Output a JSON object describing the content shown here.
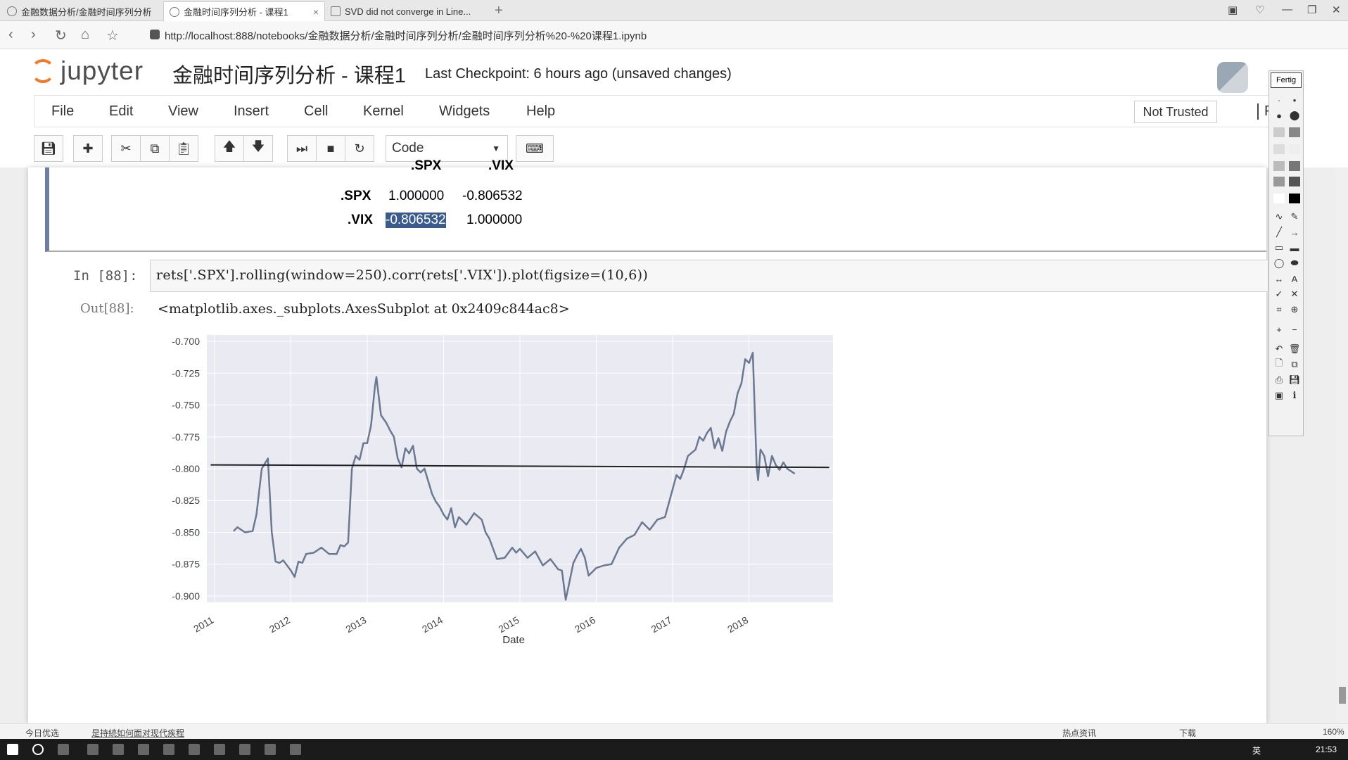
{
  "browser": {
    "tabs": [
      {
        "label": "金融数据分析/金融时间序列分析"
      },
      {
        "label": "金融时间序列分析 - 课程1"
      },
      {
        "label": "SVD did not converge in Line..."
      }
    ],
    "url": "http://localhost:888/notebooks/金融数据分析/金融时间序列分析/金融时间序列分析%20-%20课程1.ipynb",
    "zoom": "160%"
  },
  "jupyter": {
    "logo_text": "jupyter",
    "notebook_title": "金融时间序列分析 - 课程1",
    "checkpoint": "Last Checkpoint: 6 hours ago (unsaved changes)",
    "menu": [
      "File",
      "Edit",
      "View",
      "Insert",
      "Cell",
      "Kernel",
      "Widgets",
      "Help"
    ],
    "trust": "Not Trusted",
    "kernel": "Pytho",
    "cell_type": "Code"
  },
  "corr_table": {
    "columns": [
      ".SPX",
      ".VIX"
    ],
    "rows": [
      {
        "label": ".SPX",
        "values": [
          "1.000000",
          "-0.806532"
        ]
      },
      {
        "label": ".VIX",
        "values": [
          "-0.806532",
          "1.000000"
        ]
      }
    ]
  },
  "cell": {
    "in_prompt": "In  [88]:",
    "code": "rets['.SPX'].rolling(window=250).corr(rets['.VIX']).plot(figsize=(10,6))",
    "out_prompt": "Out[88]:",
    "out_text": "<matplotlib.axes._subplots.AxesSubplot at 0x2409c844ac8>"
  },
  "palette": {
    "title": "Fertig"
  },
  "status_bar": {
    "left": "今日优选",
    "center": "是持続如何面对现代疾程",
    "right_items": [
      "热点资讯",
      "下载"
    ]
  },
  "taskbar": {
    "time": "21:53",
    "lang": "英"
  },
  "chart_data": {
    "type": "line",
    "title": "",
    "xlabel": "Date",
    "ylabel": "",
    "x_ticks": [
      "2011",
      "2012",
      "2013",
      "2014",
      "2015",
      "2016",
      "2017",
      "2018"
    ],
    "y_ticks": [
      "-0.700",
      "-0.725",
      "-0.750",
      "-0.775",
      "-0.800",
      "-0.825",
      "-0.850",
      "-0.875",
      "-0.900"
    ],
    "ylim": [
      -0.905,
      -0.695
    ],
    "xlim": [
      2010.9,
      2019.1
    ],
    "grid": true,
    "line_color": "#6a7891",
    "series": [
      {
        "x": [
          2011.25,
          2011.3,
          2011.4,
          2011.5,
          2011.55,
          2011.62,
          2011.7,
          2011.75,
          2011.8,
          2011.85,
          2011.9,
          2011.95,
          2012.0,
          2012.05,
          2012.1,
          2012.15,
          2012.2,
          2012.3,
          2012.4,
          2012.5,
          2012.6,
          2012.65,
          2012.7,
          2012.75,
          2012.8,
          2012.85,
          2012.9,
          2012.95,
          2013.0,
          2013.05,
          2013.1,
          2013.12,
          2013.18,
          2013.25,
          2013.3,
          2013.35,
          2013.4,
          2013.45,
          2013.5,
          2013.55,
          2013.6,
          2013.65,
          2013.7,
          2013.75,
          2013.8,
          2013.85,
          2013.9,
          2013.95,
          2014.0,
          2014.05,
          2014.1,
          2014.15,
          2014.2,
          2014.3,
          2014.4,
          2014.5,
          2014.55,
          2014.6,
          2014.7,
          2014.8,
          2014.9,
          2014.95,
          2015.0,
          2015.1,
          2015.2,
          2015.3,
          2015.4,
          2015.5,
          2015.55,
          2015.6,
          2015.7,
          2015.75,
          2015.8,
          2015.85,
          2015.9,
          2016.0,
          2016.1,
          2016.2,
          2016.3,
          2016.4,
          2016.5,
          2016.6,
          2016.7,
          2016.8,
          2016.9,
          2017.0,
          2017.05,
          2017.1,
          2017.15,
          2017.2,
          2017.3,
          2017.35,
          2017.4,
          2017.45,
          2017.5,
          2017.55,
          2017.6,
          2017.65,
          2017.7,
          2017.75,
          2017.8,
          2017.85,
          2017.9,
          2017.95,
          2018.0,
          2018.05,
          2018.1,
          2018.12,
          2018.15,
          2018.2,
          2018.25,
          2018.3,
          2018.35,
          2018.4,
          2018.45,
          2018.5,
          2018.55,
          2018.6
        ],
        "y": [
          -0.849,
          -0.846,
          -0.85,
          -0.849,
          -0.836,
          -0.8,
          -0.792,
          -0.85,
          -0.873,
          -0.874,
          -0.872,
          -0.876,
          -0.88,
          -0.885,
          -0.873,
          -0.874,
          -0.867,
          -0.866,
          -0.862,
          -0.867,
          -0.867,
          -0.86,
          -0.861,
          -0.858,
          -0.8,
          -0.79,
          -0.793,
          -0.78,
          -0.78,
          -0.766,
          -0.736,
          -0.728,
          -0.758,
          -0.764,
          -0.77,
          -0.775,
          -0.792,
          -0.799,
          -0.784,
          -0.788,
          -0.782,
          -0.8,
          -0.803,
          -0.8,
          -0.81,
          -0.82,
          -0.826,
          -0.83,
          -0.836,
          -0.84,
          -0.831,
          -0.846,
          -0.838,
          -0.844,
          -0.835,
          -0.84,
          -0.85,
          -0.855,
          -0.871,
          -0.87,
          -0.862,
          -0.866,
          -0.863,
          -0.87,
          -0.865,
          -0.876,
          -0.871,
          -0.879,
          -0.88,
          -0.903,
          -0.874,
          -0.868,
          -0.863,
          -0.87,
          -0.884,
          -0.878,
          -0.876,
          -0.875,
          -0.862,
          -0.855,
          -0.852,
          -0.842,
          -0.848,
          -0.84,
          -0.838,
          -0.816,
          -0.805,
          -0.808,
          -0.8,
          -0.79,
          -0.785,
          -0.775,
          -0.778,
          -0.772,
          -0.768,
          -0.784,
          -0.776,
          -0.786,
          -0.771,
          -0.763,
          -0.757,
          -0.741,
          -0.733,
          -0.714,
          -0.717,
          -0.709,
          -0.799,
          -0.809,
          -0.785,
          -0.79,
          -0.806,
          -0.79,
          -0.797,
          -0.801,
          -0.795,
          -0.8,
          -0.802,
          -0.804
        ]
      }
    ],
    "overlay_line": {
      "x": [
        2010.95,
        2019.05
      ],
      "y": [
        -0.797,
        -0.799
      ],
      "color": "#222222"
    }
  }
}
